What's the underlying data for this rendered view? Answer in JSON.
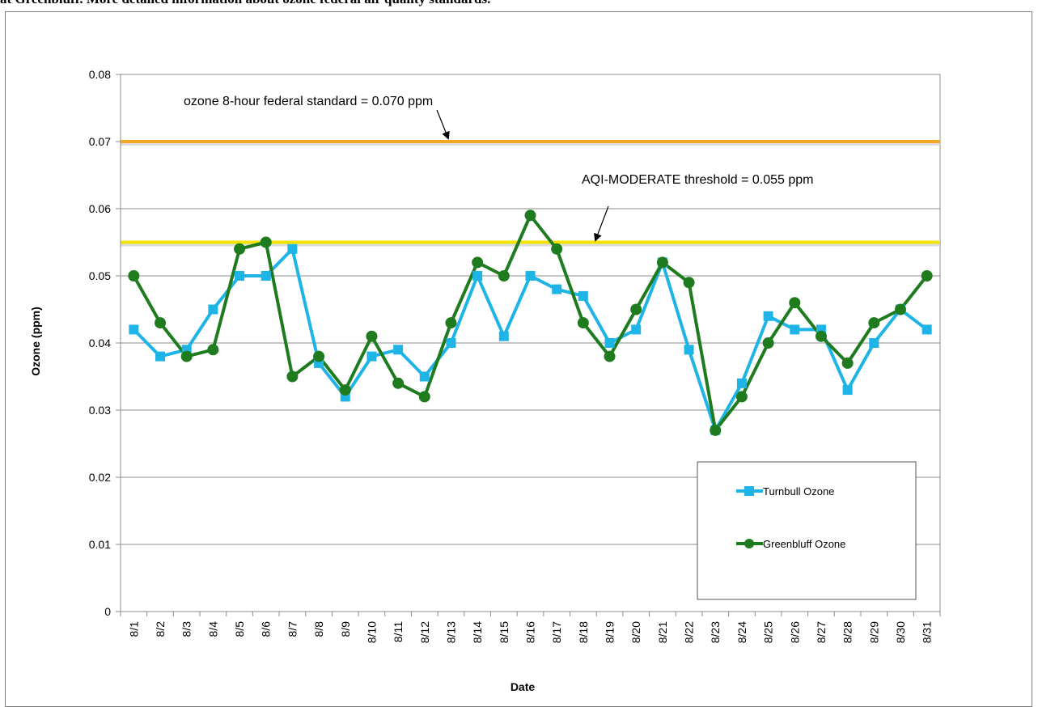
{
  "page": {
    "caption": "at Greenbluff. More detailed information about ozone federal air quality standards."
  },
  "colors": {
    "turnbull": "#1fb4e6",
    "greenbluff": "#1e7b1e",
    "federal_standard_line": "#f5a623",
    "aqi_threshold_line": "#f2e300",
    "gridline": "#8c8c8c",
    "axis": "#8c8c8c"
  },
  "chart_data": {
    "type": "line",
    "title": "",
    "xlabel": "Date",
    "ylabel": "Ozone (ppm)",
    "ylim": [
      0,
      0.08
    ],
    "yticks": [
      "0",
      "0.01",
      "0.02",
      "0.03",
      "0.04",
      "0.05",
      "0.06",
      "0.07",
      "0.08"
    ],
    "ytick_values": [
      0,
      0.01,
      0.02,
      0.03,
      0.04,
      0.05,
      0.06,
      0.07,
      0.08
    ],
    "grid": true,
    "legend_position": "bottom-right",
    "categories": [
      "8/1",
      "8/2",
      "8/3",
      "8/4",
      "8/5",
      "8/6",
      "8/7",
      "8/8",
      "8/9",
      "8/10",
      "8/11",
      "8/12",
      "8/13",
      "8/14",
      "8/15",
      "8/16",
      "8/17",
      "8/18",
      "8/19",
      "8/20",
      "8/21",
      "8/22",
      "8/23",
      "8/24",
      "8/25",
      "8/26",
      "8/27",
      "8/28",
      "8/29",
      "8/30",
      "8/31"
    ],
    "series": [
      {
        "name": "Turnbull Ozone",
        "marker": "square",
        "values": [
          0.042,
          0.038,
          0.039,
          0.045,
          0.05,
          0.05,
          0.054,
          0.037,
          0.032,
          0.038,
          0.039,
          0.035,
          0.04,
          0.05,
          0.041,
          0.05,
          0.048,
          0.047,
          0.04,
          0.042,
          0.052,
          0.039,
          0.027,
          0.034,
          0.044,
          0.042,
          0.042,
          0.033,
          0.04,
          0.045,
          0.042
        ]
      },
      {
        "name": "Greenbluff Ozone",
        "marker": "circle",
        "values": [
          0.05,
          0.043,
          0.038,
          0.039,
          0.054,
          0.055,
          0.035,
          0.038,
          0.033,
          0.041,
          0.034,
          0.032,
          0.043,
          0.052,
          0.05,
          0.059,
          0.054,
          0.043,
          0.038,
          0.045,
          0.052,
          0.049,
          0.027,
          0.032,
          0.04,
          0.046,
          0.041,
          0.037,
          0.043,
          0.045,
          0.05
        ]
      }
    ],
    "reference_lines": [
      {
        "label": "ozone 8-hour federal standard = 0.070 ppm",
        "value": 0.07
      },
      {
        "label": "AQI-MODERATE threshold = 0.055 ppm",
        "value": 0.055
      }
    ]
  }
}
